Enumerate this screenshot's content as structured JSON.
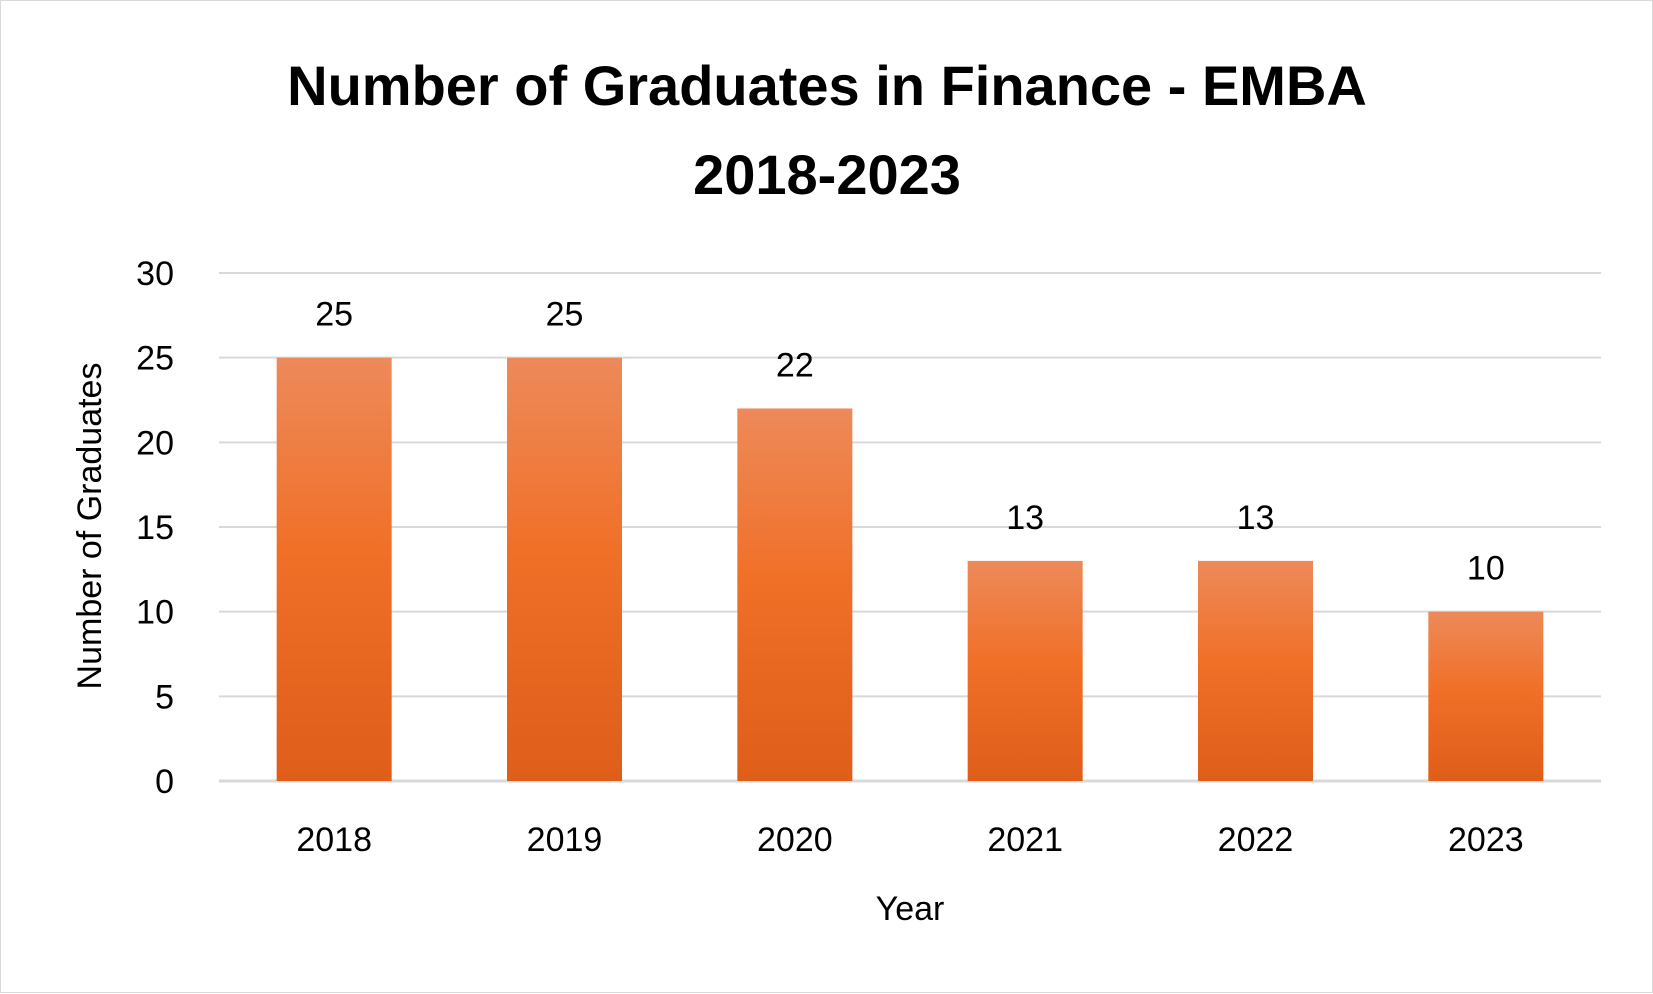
{
  "chart_data": {
    "type": "bar",
    "title": [
      "Number of Graduates in Finance - EMBA",
      "2018-2023"
    ],
    "xlabel": "Year",
    "ylabel": "Number of Graduates",
    "categories": [
      "2018",
      "2019",
      "2020",
      "2021",
      "2022",
      "2023"
    ],
    "values": [
      25,
      25,
      22,
      13,
      13,
      10
    ],
    "data_labels": [
      "25",
      "25",
      "22",
      "13",
      "13",
      "10"
    ],
    "yticks": [
      "0",
      "5",
      "10",
      "15",
      "20",
      "25",
      "30"
    ],
    "ylim": [
      0,
      30
    ],
    "grid": true,
    "legend": "none",
    "bar_color_top": "#ed8a5a",
    "bar_color_mid": "#f07028",
    "bar_color_bottom": "#de5e1a"
  }
}
